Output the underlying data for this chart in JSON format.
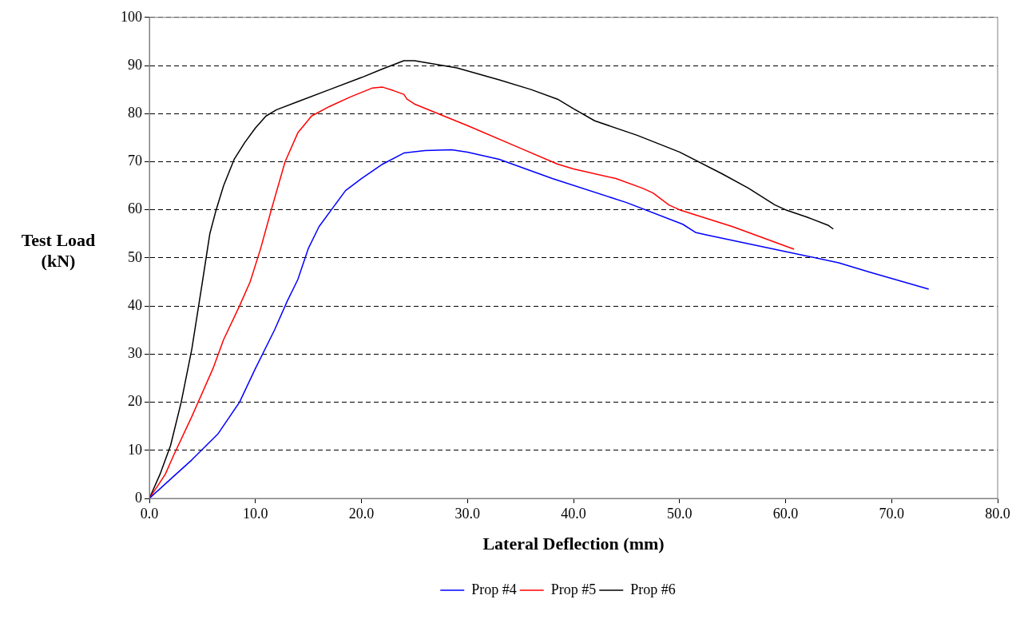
{
  "chart_data": {
    "type": "line",
    "xlabel": "Lateral Deflection (mm)",
    "ylabel": "Test Load (kN)",
    "xlim": [
      0,
      80
    ],
    "xticks": [
      {
        "value": 0,
        "label": "0.0"
      },
      {
        "value": 10,
        "label": "10.0"
      },
      {
        "value": 20,
        "label": "20.0"
      },
      {
        "value": 30,
        "label": "30.0"
      },
      {
        "value": 40,
        "label": "40.0"
      },
      {
        "value": 50,
        "label": "50.0"
      },
      {
        "value": 60,
        "label": "60.0"
      },
      {
        "value": 70,
        "label": "70.0"
      },
      {
        "value": 80,
        "label": "80.0"
      }
    ],
    "ylim": [
      0,
      100
    ],
    "yticks": [
      0,
      10,
      20,
      30,
      40,
      50,
      60,
      70,
      80,
      90,
      100
    ],
    "grid": "y",
    "legend": "bottom",
    "marker": "none",
    "line_style": "solid",
    "series": [
      {
        "name": "Prop #4",
        "color": "#0000ff",
        "x": [
          0,
          2,
          4,
          6.5,
          8.5,
          10,
          11.8,
          13,
          14,
          15,
          16,
          17.5,
          18.5,
          20,
          22,
          24,
          26,
          28.5,
          30,
          33,
          38,
          45,
          50.3,
          51.5,
          52.5,
          60,
          65,
          68,
          73.5
        ],
        "values": [
          0,
          4,
          8,
          13.5,
          20,
          27,
          35,
          41,
          45.5,
          52,
          56.5,
          61,
          64,
          66.5,
          69.5,
          71.8,
          72.3,
          72.5,
          72,
          70.5,
          66.5,
          61.5,
          57,
          55.3,
          54.8,
          51.3,
          49,
          47,
          43.5
        ]
      },
      {
        "name": "Prop #5",
        "color": "#ff0000",
        "x": [
          0,
          1.5,
          2.3,
          4,
          6,
          7,
          8.5,
          9.5,
          10.5,
          11.5,
          12.8,
          14,
          15.3,
          17,
          19,
          21,
          22,
          23,
          24,
          24.3,
          25,
          30,
          35,
          38.5,
          40,
          44,
          46.5,
          47.5,
          49,
          50,
          55,
          60.8
        ],
        "values": [
          0,
          5,
          9,
          17,
          27,
          33,
          40,
          45,
          52,
          60,
          70,
          76,
          79.5,
          81.5,
          83.5,
          85.3,
          85.5,
          84.8,
          84,
          83,
          82,
          77.5,
          72.8,
          69.5,
          68.5,
          66.5,
          64.5,
          63.5,
          61,
          60,
          56.5,
          51.8
        ]
      },
      {
        "name": "Prop #6",
        "color": "#000000",
        "x": [
          0,
          1,
          2,
          3,
          4,
          5,
          5.7,
          6.3,
          7,
          8,
          9,
          10,
          11,
          12,
          14,
          17,
          20,
          22,
          24,
          25,
          29,
          33,
          36,
          38.5,
          40,
          42,
          46,
          50,
          54,
          56.5,
          59,
          60,
          62,
          64,
          64.5
        ],
        "values": [
          0,
          5,
          11,
          20,
          31,
          45,
          55,
          60,
          65,
          70.5,
          74,
          77,
          79.5,
          80.8,
          82.5,
          85,
          87.5,
          89.3,
          91,
          91,
          89.5,
          87,
          85,
          83,
          81,
          78.5,
          75.5,
          72,
          67.5,
          64.5,
          61,
          60,
          58.5,
          56.8,
          56
        ]
      }
    ]
  }
}
